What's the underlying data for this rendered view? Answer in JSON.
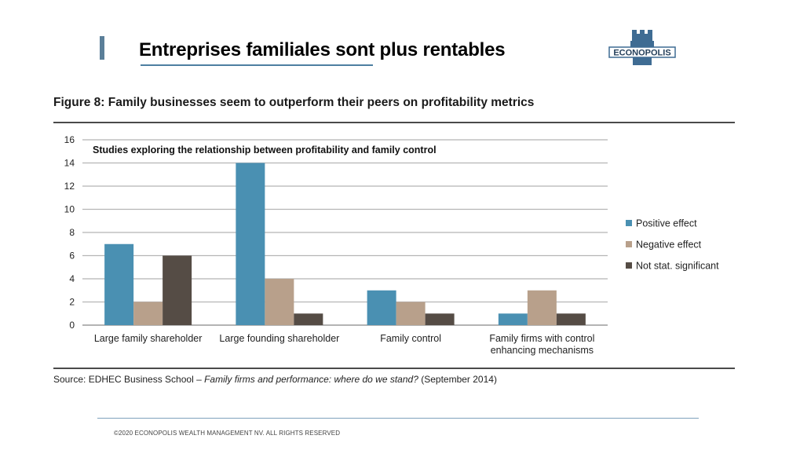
{
  "slide": {
    "title": "Entreprises familiales sont plus rentables",
    "logo_text": "ECONOPOLIS",
    "footer": "©2020 ECONOPOLIS WEALTH MANAGEMENT NV. ALL RIGHTS RESERVED"
  },
  "figure": {
    "title": "Figure 8: Family businesses seem to outperform their peers on profitability metrics",
    "source_prefix": "Source:  EDHEC Business School – ",
    "source_title": "Family firms and performance: where do we stand?",
    "source_suffix": " (September 2014)"
  },
  "colors": {
    "accent": "#5b7f99",
    "positive": "#4a90b2",
    "negative": "#b8a08b",
    "not_significant": "#554c45"
  },
  "chart_data": {
    "type": "bar",
    "title": "Studies exploring the relationship between profitability and family control",
    "xlabel": "",
    "ylabel": "",
    "ylim": [
      0,
      16
    ],
    "yticks": [
      "0",
      "2",
      "4",
      "6",
      "8",
      "10",
      "12",
      "14",
      "16"
    ],
    "categories": [
      [
        "Large family shareholder"
      ],
      [
        "Large founding shareholder"
      ],
      [
        "Family control"
      ],
      [
        "Family firms with control",
        "enhancing mechanisms"
      ]
    ],
    "series": [
      {
        "name": "Positive effect",
        "values": [
          7,
          14,
          3,
          1
        ],
        "color": "#4a90b2"
      },
      {
        "name": "Negative effect",
        "values": [
          2,
          4,
          2,
          3
        ],
        "color": "#b8a08b"
      },
      {
        "name": "Not stat. significant",
        "values": [
          6,
          1,
          1,
          1
        ],
        "color": "#554c45"
      }
    ],
    "grid": true,
    "legend": "right"
  }
}
